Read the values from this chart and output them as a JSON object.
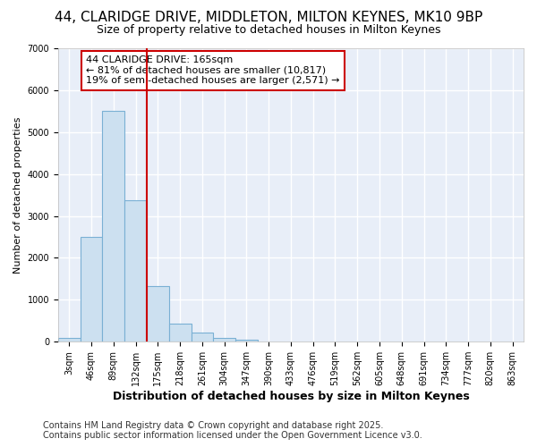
{
  "title1": "44, CLARIDGE DRIVE, MIDDLETON, MILTON KEYNES, MK10 9BP",
  "title2": "Size of property relative to detached houses in Milton Keynes",
  "xlabel": "Distribution of detached houses by size in Milton Keynes",
  "ylabel": "Number of detached properties",
  "categories": [
    "3sqm",
    "46sqm",
    "89sqm",
    "132sqm",
    "175sqm",
    "218sqm",
    "261sqm",
    "304sqm",
    "347sqm",
    "390sqm",
    "433sqm",
    "476sqm",
    "519sqm",
    "562sqm",
    "605sqm",
    "648sqm",
    "691sqm",
    "734sqm",
    "777sqm",
    "820sqm",
    "863sqm"
  ],
  "values": [
    100,
    2500,
    5500,
    3380,
    1330,
    430,
    220,
    80,
    50,
    0,
    0,
    0,
    0,
    0,
    0,
    0,
    0,
    0,
    0,
    0,
    0
  ],
  "bar_color": "#cce0f0",
  "bar_edge_color": "#7ab0d4",
  "vline_color": "#cc0000",
  "vline_pos": 3.5,
  "annotation_text": "44 CLARIDGE DRIVE: 165sqm\n← 81% of detached houses are smaller (10,817)\n19% of semi-detached houses are larger (2,571) →",
  "annotation_box_facecolor": "#ffffff",
  "annotation_box_edgecolor": "#cc0000",
  "ylim": [
    0,
    7000
  ],
  "yticks": [
    0,
    1000,
    2000,
    3000,
    4000,
    5000,
    6000,
    7000
  ],
  "footer": "Contains HM Land Registry data © Crown copyright and database right 2025.\nContains public sector information licensed under the Open Government Licence v3.0.",
  "fig_bg_color": "#ffffff",
  "plot_bg_color": "#e8eef8",
  "grid_color": "#ffffff",
  "title1_fontsize": 11,
  "title2_fontsize": 9,
  "xlabel_fontsize": 9,
  "ylabel_fontsize": 8,
  "tick_fontsize": 7,
  "annotation_fontsize": 8,
  "footer_fontsize": 7
}
